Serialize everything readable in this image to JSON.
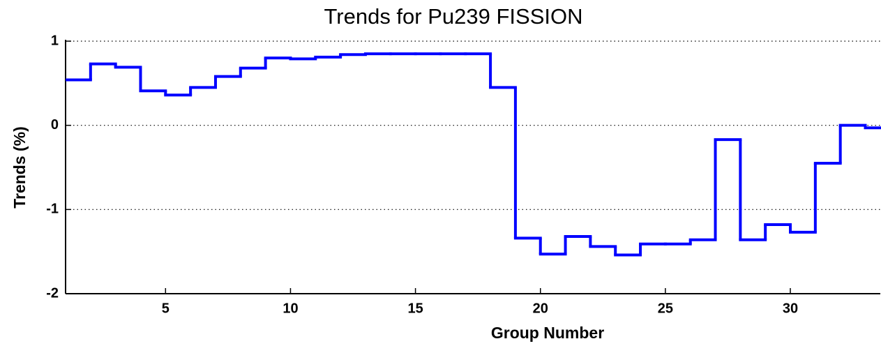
{
  "chart_data": {
    "type": "step",
    "title": "Trends for Pu239 FISSION",
    "xlabel": "Group Number",
    "ylabel": "Trends (%)",
    "x": [
      1,
      2,
      3,
      4,
      5,
      6,
      7,
      8,
      9,
      10,
      11,
      12,
      13,
      14,
      15,
      16,
      17,
      18,
      19,
      20,
      21,
      22,
      23,
      24,
      25,
      26,
      27,
      28,
      29,
      30,
      31,
      32,
      33
    ],
    "series": [
      {
        "name": "Pu239 FISSION",
        "color": "#0000ff",
        "values": [
          0.54,
          0.73,
          0.69,
          0.41,
          0.36,
          0.45,
          0.58,
          0.68,
          0.8,
          0.79,
          0.81,
          0.84,
          0.85,
          0.85,
          0.85,
          0.85,
          0.85,
          0.45,
          -1.34,
          -1.53,
          -1.32,
          -1.44,
          -1.54,
          -1.41,
          -1.41,
          -1.36,
          -0.17,
          -1.36,
          -1.18,
          -1.27,
          -0.45,
          0.0,
          -0.03
        ]
      }
    ],
    "xlim": [
      1,
      33.6
    ],
    "xticks": [
      5,
      10,
      15,
      20,
      25,
      30
    ],
    "ylim": [
      -2,
      1
    ],
    "yticks": [
      -2,
      -1,
      0,
      1
    ],
    "grid": true
  }
}
